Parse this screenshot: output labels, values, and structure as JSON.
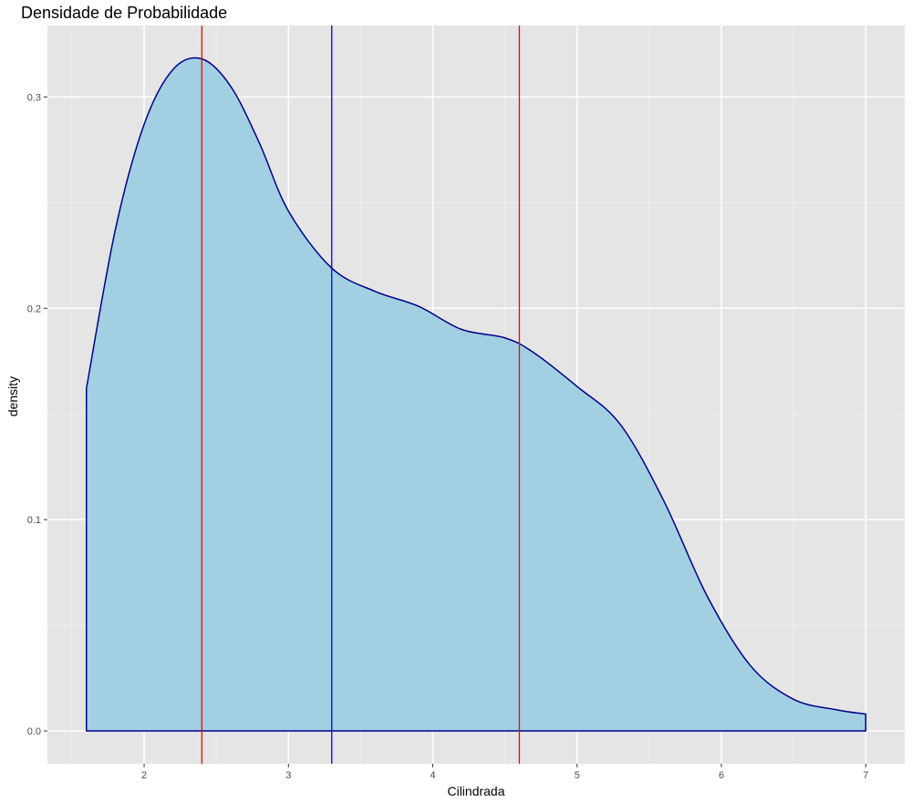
{
  "chart_data": {
    "type": "area",
    "title": "Densidade de Probabilidade",
    "xlabel": "Cilindrada",
    "ylabel": "density",
    "xlim": [
      1.33,
      7.27
    ],
    "ylim": [
      -0.0155,
      0.3338
    ],
    "x_ticks": [
      2,
      3,
      4,
      5,
      6,
      7
    ],
    "y_ticks": [
      0.0,
      0.1,
      0.2,
      0.3
    ],
    "x_tick_labels": [
      "2",
      "3",
      "4",
      "5",
      "6",
      "7"
    ],
    "y_tick_labels": [
      "0.0",
      "0.1",
      "0.2",
      "0.3"
    ],
    "grid": true,
    "fill_color": "#a2d0e2",
    "line_color": "#00008b",
    "series": [
      {
        "x": [
          1.6,
          1.8,
          2.0,
          2.2,
          2.4,
          2.6,
          2.8,
          3.0,
          3.3,
          3.6,
          3.9,
          4.2,
          4.5,
          4.7,
          5.0,
          5.3,
          5.6,
          5.9,
          6.2,
          6.5,
          6.8,
          7.0
        ],
        "y": [
          0.162,
          0.237,
          0.287,
          0.313,
          0.318,
          0.305,
          0.278,
          0.246,
          0.219,
          0.208,
          0.201,
          0.19,
          0.186,
          0.179,
          0.163,
          0.145,
          0.109,
          0.064,
          0.031,
          0.015,
          0.01,
          0.008
        ]
      }
    ],
    "vertical_lines": [
      {
        "x": 2.4,
        "color": "#ff0000"
      },
      {
        "x": 3.3,
        "color": "#0000ff"
      },
      {
        "x": 4.6,
        "color": "#ff0000"
      }
    ]
  }
}
